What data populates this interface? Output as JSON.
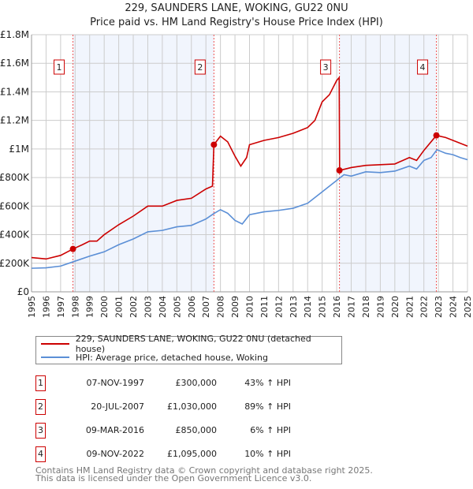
{
  "title": "229, SAUNDERS LANE, WOKING, GU22 0NU",
  "subtitle": "Price paid vs. HM Land Registry's House Price Index (HPI)",
  "chart_data": {
    "type": "line",
    "title": "229, SAUNDERS LANE, WOKING, GU22 0NU",
    "subtitle": "Price paid vs. HM Land Registry's House Price Index (HPI)",
    "xlim": [
      1995,
      2025
    ],
    "ylim": [
      0,
      1800000
    ],
    "y_ticks": [
      0,
      200000,
      400000,
      600000,
      800000,
      1000000,
      1200000,
      1400000,
      1600000,
      1800000
    ],
    "y_tick_labels": [
      "£0",
      "£200K",
      "£400K",
      "£600K",
      "£800K",
      "£1M",
      "£1.2M",
      "£1.4M",
      "£1.6M",
      "£1.8M"
    ],
    "x_tick_labels": [
      "1995",
      "1996",
      "1997",
      "1998",
      "1999",
      "2000",
      "2001",
      "2002",
      "2003",
      "2004",
      "2005",
      "2006",
      "2007",
      "2008",
      "2009",
      "2010",
      "2011",
      "2012",
      "2013",
      "2014",
      "2015",
      "2016",
      "2017",
      "2018",
      "2019",
      "2020",
      "2021",
      "2022",
      "2023",
      "2024",
      "2025"
    ],
    "grid": true,
    "series": [
      {
        "name": "229, SAUNDERS LANE, WOKING, GU22 0NU (detached house)",
        "color": "#cc0000",
        "x": [
          1995,
          1996,
          1997,
          1997.85,
          1998.5,
          1999,
          1999.5,
          2000,
          2001,
          2002,
          2003,
          2004,
          2005,
          2006,
          2007,
          2007.45,
          2007.55,
          2008,
          2008.5,
          2009,
          2009.4,
          2009.8,
          2010,
          2011,
          2012,
          2013,
          2014,
          2014.5,
          2015,
          2015.5,
          2016,
          2016.17,
          2016.2,
          2017,
          2018,
          2019,
          2020,
          2021,
          2021.5,
          2022,
          2022.86,
          2023.5,
          2024,
          2024.5,
          2025
        ],
        "y": [
          240000,
          230000,
          255000,
          300000,
          330000,
          355000,
          355000,
          400000,
          470000,
          530000,
          600000,
          600000,
          640000,
          655000,
          720000,
          740000,
          1030000,
          1090000,
          1050000,
          950000,
          880000,
          940000,
          1030000,
          1060000,
          1080000,
          1110000,
          1150000,
          1200000,
          1330000,
          1380000,
          1480000,
          1500000,
          850000,
          870000,
          885000,
          890000,
          895000,
          940000,
          920000,
          990000,
          1095000,
          1080000,
          1060000,
          1040000,
          1020000
        ]
      },
      {
        "name": "HPI: Average price, detached house, Woking",
        "color": "#5b8fd6",
        "x": [
          1995,
          1996,
          1997,
          1998,
          1999,
          2000,
          2001,
          2002,
          2003,
          2004,
          2005,
          2006,
          2007,
          2007.5,
          2008,
          2008.5,
          2009,
          2009.5,
          2010,
          2011,
          2012,
          2013,
          2014,
          2015,
          2016,
          2016.5,
          2017,
          2018,
          2019,
          2020,
          2021,
          2021.5,
          2022,
          2022.5,
          2022.9,
          2023.5,
          2024,
          2024.5,
          2025
        ],
        "y": [
          165000,
          168000,
          180000,
          215000,
          250000,
          280000,
          330000,
          370000,
          420000,
          430000,
          455000,
          465000,
          510000,
          545000,
          575000,
          550000,
          500000,
          475000,
          540000,
          560000,
          570000,
          585000,
          620000,
          700000,
          780000,
          820000,
          810000,
          840000,
          835000,
          845000,
          880000,
          860000,
          920000,
          940000,
          995000,
          970000,
          960000,
          940000,
          925000
        ]
      }
    ],
    "sales": [
      {
        "label": "1",
        "x": 1997.85,
        "y": 300000
      },
      {
        "label": "2",
        "x": 2007.55,
        "y": 1030000
      },
      {
        "label": "3",
        "x": 2016.19,
        "y": 850000
      },
      {
        "label": "4",
        "x": 2022.86,
        "y": 1095000
      }
    ],
    "shaded_ranges": [
      [
        1997.85,
        2007.55
      ],
      [
        2016.19,
        2022.86
      ]
    ]
  },
  "legend": {
    "items": [
      {
        "label": "229, SAUNDERS LANE, WOKING, GU22 0NU (detached house)",
        "color": "#cc0000"
      },
      {
        "label": "HPI: Average price, detached house, Woking",
        "color": "#5b8fd6"
      }
    ]
  },
  "transactions": [
    {
      "num": "1",
      "date": "07-NOV-1997",
      "price": "£300,000",
      "hpi": "43% ↑ HPI"
    },
    {
      "num": "2",
      "date": "20-JUL-2007",
      "price": "£1,030,000",
      "hpi": "89% ↑ HPI"
    },
    {
      "num": "3",
      "date": "09-MAR-2016",
      "price": "£850,000",
      "hpi": "6% ↑ HPI"
    },
    {
      "num": "4",
      "date": "09-NOV-2022",
      "price": "£1,095,000",
      "hpi": "10% ↑ HPI"
    }
  ],
  "footer": {
    "line1": "Contains HM Land Registry data © Crown copyright and database right 2025.",
    "line2": "This data is licensed under the Open Government Licence v3.0."
  }
}
